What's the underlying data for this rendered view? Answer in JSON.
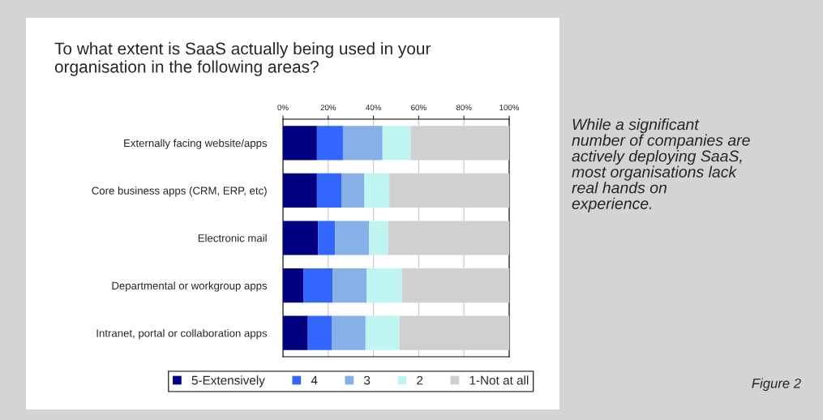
{
  "chart_data": {
    "type": "bar",
    "orientation": "horizontal",
    "stacked": true,
    "title": "To what extent is SaaS actually being used in your organisation in the following areas?",
    "categories": [
      "Externally facing website/apps",
      "Core business apps (CRM, ERP, etc)",
      "Electronic mail",
      "Departmental or workgroup apps",
      "Intranet, portal or collaboration apps"
    ],
    "series": [
      {
        "name": "5-Extensively",
        "color": "#000080",
        "values": [
          15,
          15,
          15.5,
          9,
          11
        ]
      },
      {
        "name": "4",
        "color": "#3366ff",
        "values": [
          11.5,
          11,
          7.5,
          13,
          10.5
        ]
      },
      {
        "name": "3",
        "color": "#88b0e8",
        "values": [
          17.5,
          10,
          15,
          15,
          15
        ]
      },
      {
        "name": "2",
        "color": "#bff5f0",
        "values": [
          12.5,
          11,
          8.5,
          15.5,
          15
        ]
      },
      {
        "name": "1-Not at all",
        "color": "#d0d0d0",
        "values": [
          43.5,
          53,
          53.5,
          47.5,
          48.5
        ]
      }
    ],
    "xlim": [
      0,
      100
    ],
    "xticks": [
      {
        "value": 0,
        "label": "0%"
      },
      {
        "value": 20,
        "label": "20%"
      },
      {
        "value": 40,
        "label": "40%"
      },
      {
        "value": 60,
        "label": "60%"
      },
      {
        "value": 80,
        "label": "80%"
      },
      {
        "value": 100,
        "label": "100%"
      }
    ],
    "grid": "x",
    "legend": "bottom",
    "annotations": [
      "While a significant number of companies are actively deploying SaaS, most organisations lack real hands on experience.",
      "Figure 2"
    ]
  }
}
